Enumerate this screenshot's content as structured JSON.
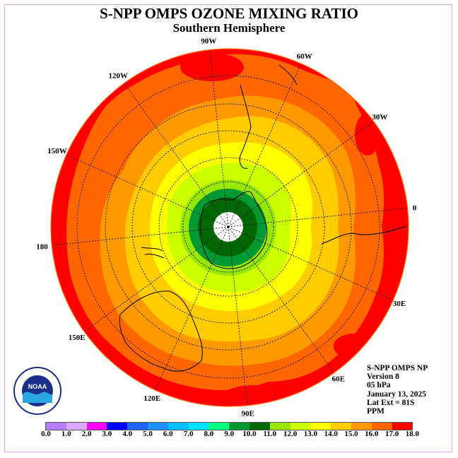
{
  "title": "S-NPP OMPS OZONE MIXING RATIO",
  "subtitle": "Southern Hemisphere",
  "longitude_labels": [
    "90W",
    "60W",
    "30W",
    "0",
    "30E",
    "60E",
    "90E",
    "120E",
    "150E",
    "180",
    "150W",
    "120W"
  ],
  "info": {
    "instrument": "S-NPP OMPS NP",
    "version": "Version 8",
    "pressure": "05 hPa",
    "date": "January 13, 2025",
    "lat_ext": "Lat Ext = 81S",
    "unit": "PPM"
  },
  "colorbar": {
    "ticks": [
      "0.0",
      "1.0",
      "2.0",
      "3.0",
      "4.0",
      "5.0",
      "6.0",
      "7.0",
      "8.0",
      "9.0",
      "10.0",
      "11.0",
      "12.0",
      "13.0",
      "14.0",
      "15.0",
      "16.0",
      "17.0",
      "18.0"
    ],
    "colors": [
      "#b77cff",
      "#d9a8ff",
      "#ff00ff",
      "#0000ff",
      "#1e63ff",
      "#1e90ff",
      "#00bfff",
      "#00e0ff",
      "#00ff80",
      "#009933",
      "#006600",
      "#99e600",
      "#ccff00",
      "#ffff00",
      "#ffcc00",
      "#ff9900",
      "#ff6600",
      "#ff0000"
    ],
    "upper_color": "#996633"
  },
  "map": {
    "contour_levels": [
      {
        "value": 16,
        "color": "#ff0000"
      },
      {
        "value": 15,
        "color": "#ff6600"
      },
      {
        "value": 14,
        "color": "#ff9900"
      },
      {
        "value": 13,
        "color": "#ffcc00"
      },
      {
        "value": 12,
        "color": "#ffff00"
      },
      {
        "value": 11,
        "color": "#ccff00"
      },
      {
        "value": 10,
        "color": "#99e600"
      },
      {
        "value": 9,
        "color": "#009933"
      },
      {
        "value": 8,
        "color": "#006600"
      }
    ],
    "missing_center": "#ffffff"
  },
  "logo_text": "NOAA"
}
